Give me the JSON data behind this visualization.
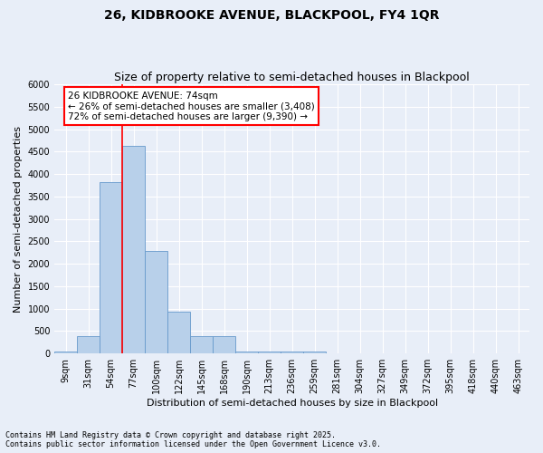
{
  "title1": "26, KIDBROOKE AVENUE, BLACKPOOL, FY4 1QR",
  "title2": "Size of property relative to semi-detached houses in Blackpool",
  "xlabel": "Distribution of semi-detached houses by size in Blackpool",
  "ylabel": "Number of semi-detached properties",
  "categories": [
    "9sqm",
    "31sqm",
    "54sqm",
    "77sqm",
    "100sqm",
    "122sqm",
    "145sqm",
    "168sqm",
    "190sqm",
    "213sqm",
    "236sqm",
    "259sqm",
    "281sqm",
    "304sqm",
    "327sqm",
    "349sqm",
    "372sqm",
    "395sqm",
    "418sqm",
    "440sqm",
    "463sqm"
  ],
  "values": [
    50,
    390,
    3820,
    4620,
    2280,
    930,
    380,
    380,
    50,
    50,
    50,
    50,
    0,
    0,
    0,
    0,
    0,
    0,
    0,
    0,
    0
  ],
  "bar_color": "#b8d0ea",
  "bar_edge_color": "#6699cc",
  "red_line_x": 2.5,
  "red_line_label": "26 KIDBROOKE AVENUE: 74sqm",
  "annotation_smaller": "← 26% of semi-detached houses are smaller (3,408)",
  "annotation_larger": "72% of semi-detached houses are larger (9,390) →",
  "ylim": [
    0,
    6000
  ],
  "yticks": [
    0,
    500,
    1000,
    1500,
    2000,
    2500,
    3000,
    3500,
    4000,
    4500,
    5000,
    5500,
    6000
  ],
  "footnote": "Contains HM Land Registry data © Crown copyright and database right 2025.\nContains public sector information licensed under the Open Government Licence v3.0.",
  "bg_color": "#e8eef8",
  "grid_color": "#ffffff",
  "title1_fontsize": 10,
  "title2_fontsize": 9,
  "axis_label_fontsize": 8,
  "tick_fontsize": 7,
  "annot_fontsize": 7.5,
  "footnote_fontsize": 6
}
